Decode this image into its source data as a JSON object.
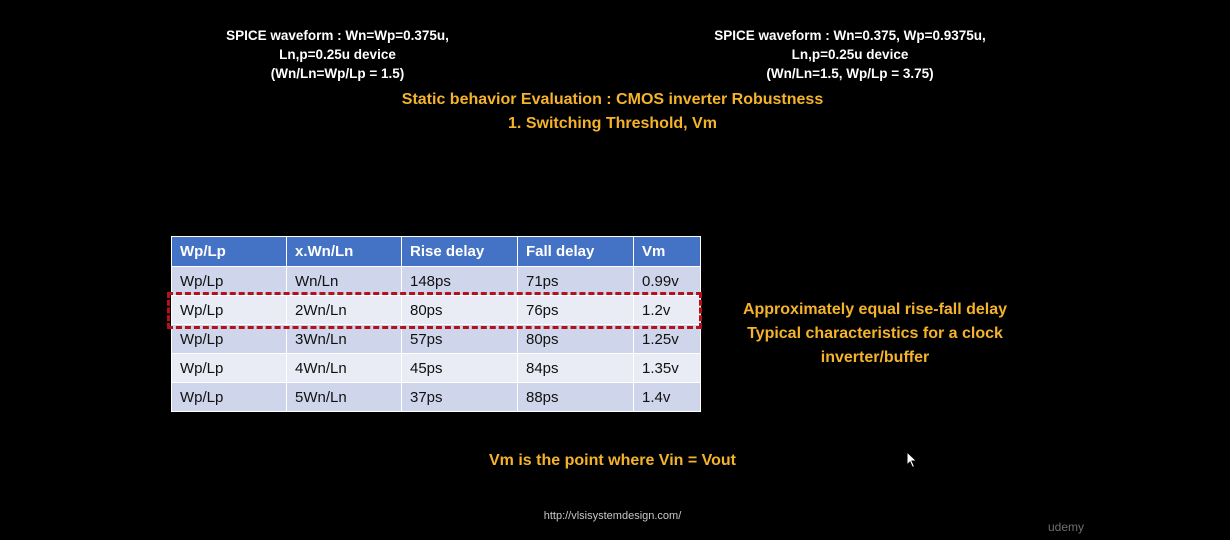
{
  "left_note": {
    "line1": "SPICE waveform : Wn=Wp=0.375u,",
    "line2": "Ln,p=0.25u device",
    "line3": "(Wn/Ln=Wp/Lp = 1.5)"
  },
  "right_note": {
    "line1": "SPICE waveform : Wn=0.375, Wp=0.9375u,",
    "line2": "Ln,p=0.25u device",
    "line3": "(Wn/Ln=1.5, Wp/Lp = 3.75)"
  },
  "title": {
    "line1": "Static behavior Evaluation : CMOS inverter Robustness",
    "line2": "1. Switching Threshold, Vm"
  },
  "table": {
    "headers": [
      "Wp/Lp",
      "x.Wn/Ln",
      "Rise delay",
      "Fall delay",
      "Vm"
    ],
    "rows": [
      [
        "Wp/Lp",
        "Wn/Ln",
        "148ps",
        "71ps",
        "0.99v"
      ],
      [
        "Wp/Lp",
        "2Wn/Ln",
        "80ps",
        "76ps",
        "1.2v"
      ],
      [
        "Wp/Lp",
        "3Wn/Ln",
        "57ps",
        "80ps",
        "1.25v"
      ],
      [
        "Wp/Lp",
        "4Wn/Ln",
        "45ps",
        "84ps",
        "1.35v"
      ],
      [
        "Wp/Lp",
        "5Wn/Ln",
        "37ps",
        "88ps",
        "1.4v"
      ]
    ]
  },
  "side_note": {
    "line1": "Approximately equal rise-fall delay",
    "line2": "Typical characteristics for a clock",
    "line3": "inverter/buffer"
  },
  "vm_note": "Vm is the point where Vin = Vout",
  "url": "http://vlsisystemdesign.com/",
  "watermark": "udemy",
  "colors": {
    "background": "#000000",
    "accent_text": "#f4b32a",
    "table_header": "#4472c4",
    "highlight_border": "#b2121b"
  }
}
